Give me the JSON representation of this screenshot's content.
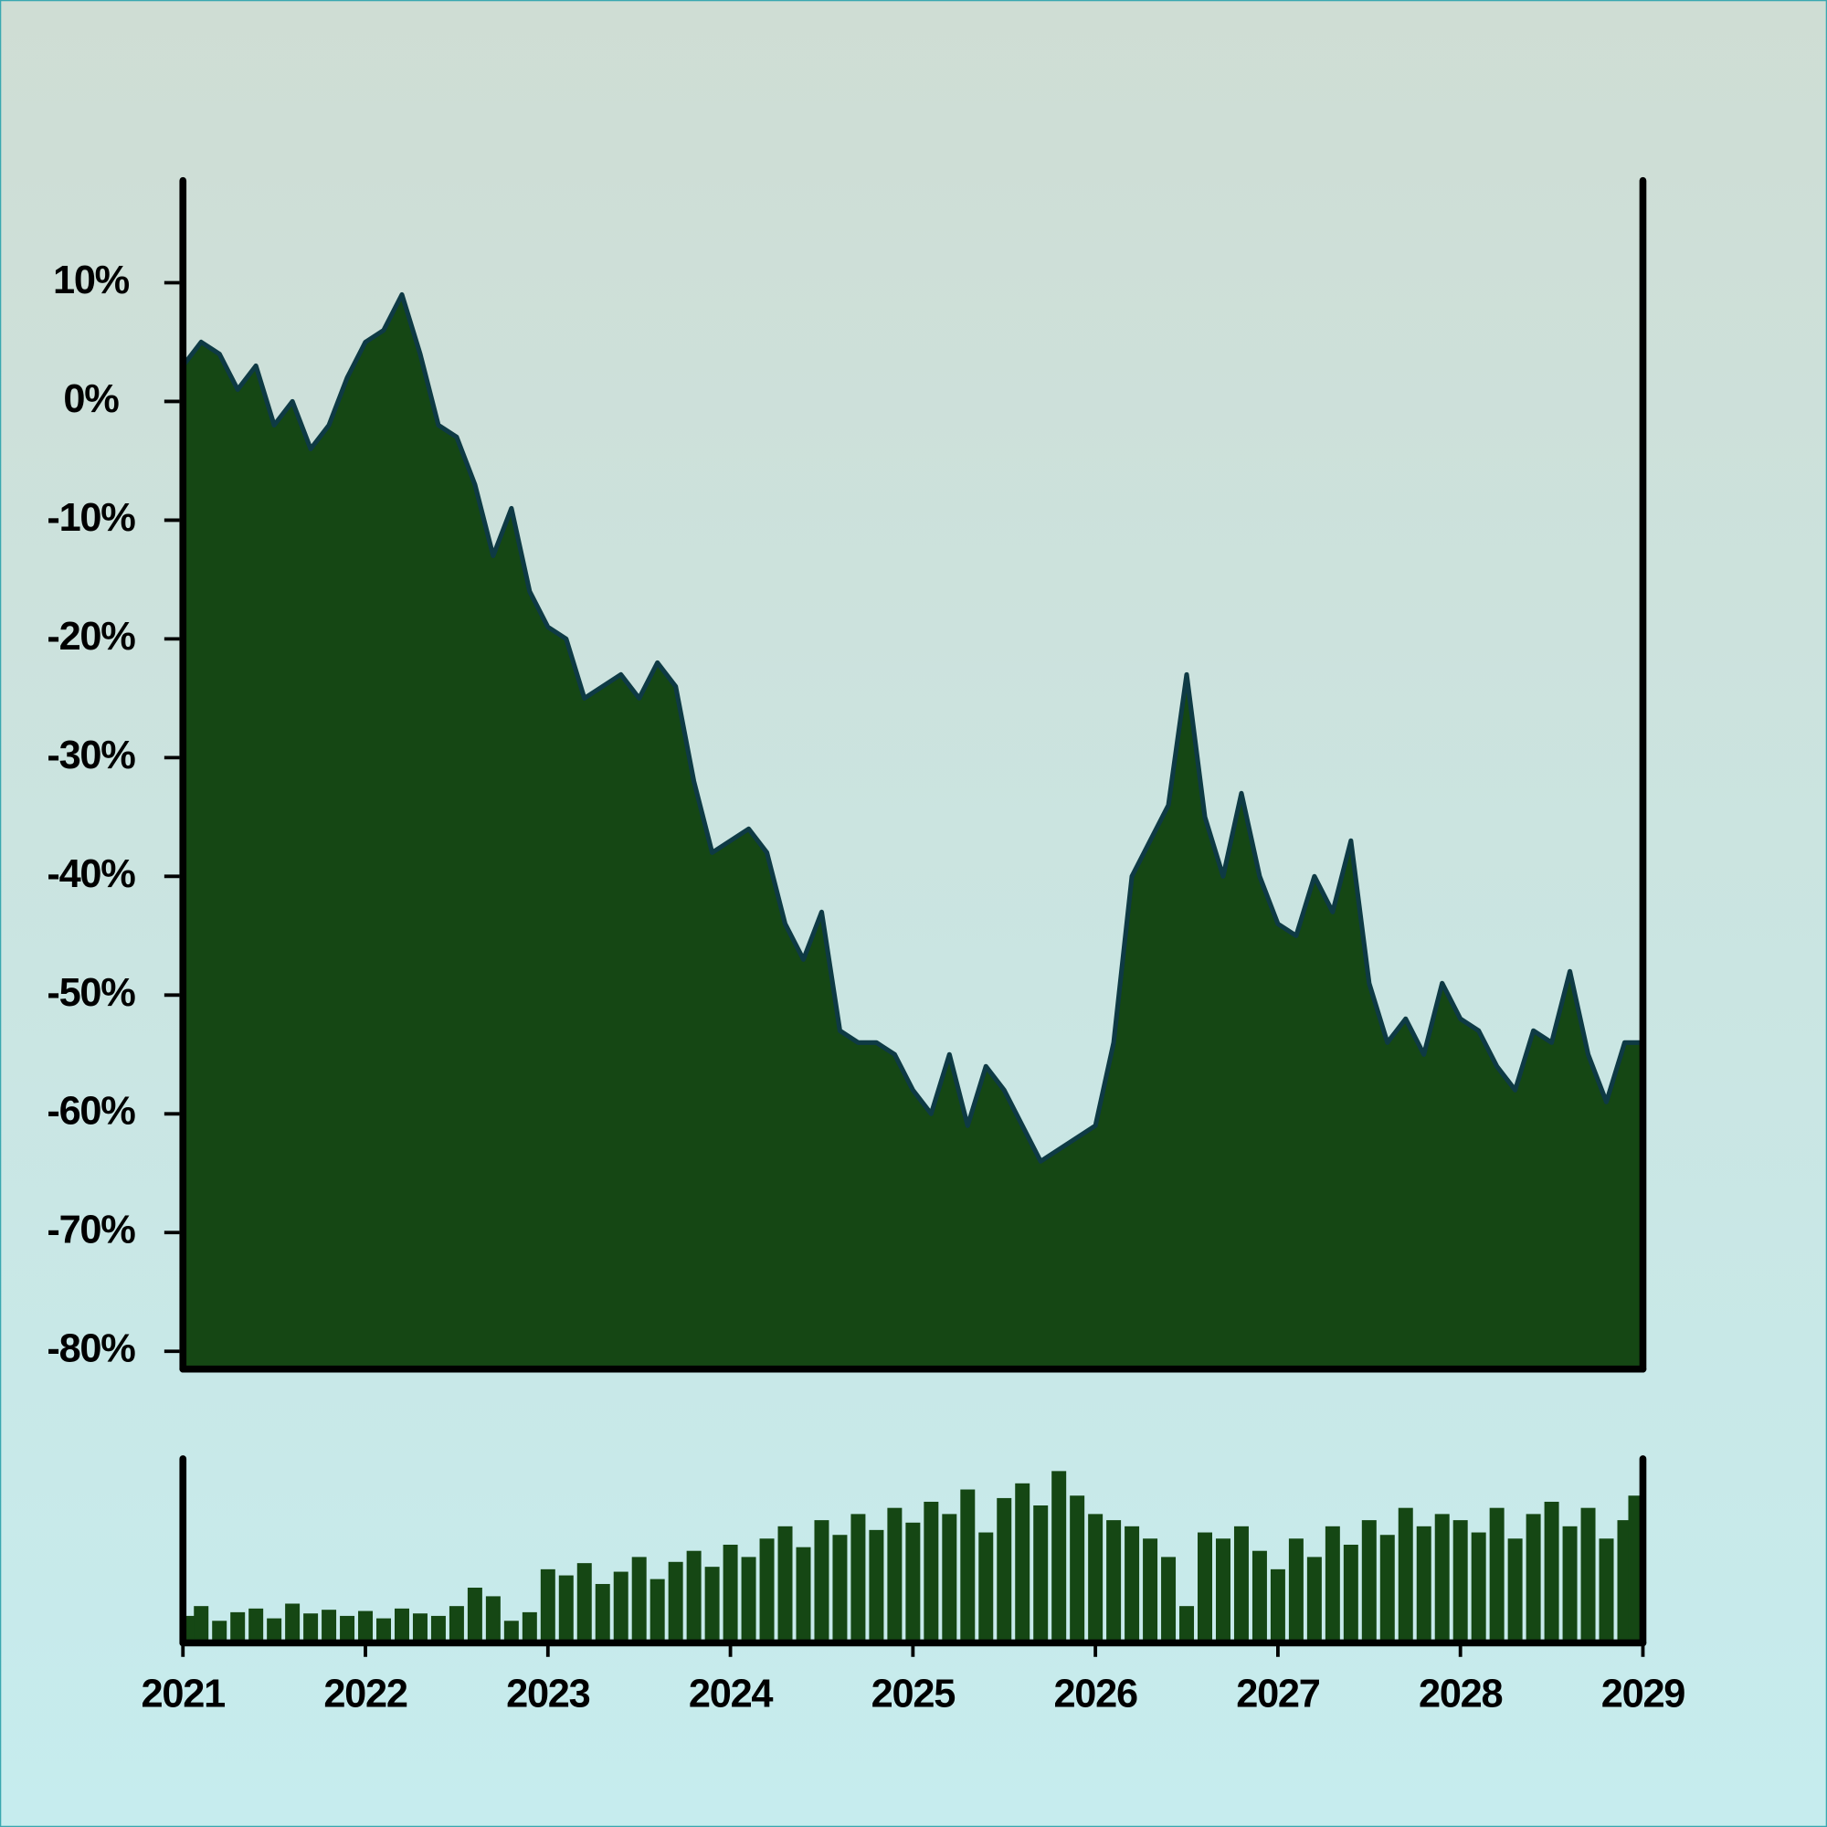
{
  "chart_data": [
    {
      "type": "area",
      "x": [
        2021.0,
        2021.1,
        2021.2,
        2021.3,
        2021.4,
        2021.5,
        2021.6,
        2021.7,
        2021.8,
        2021.9,
        2022.0,
        2022.1,
        2022.2,
        2022.3,
        2022.4,
        2022.5,
        2022.6,
        2022.7,
        2022.8,
        2022.9,
        2023.0,
        2023.1,
        2023.2,
        2023.3,
        2023.4,
        2023.5,
        2023.6,
        2023.7,
        2023.8,
        2023.9,
        2024.0,
        2024.1,
        2024.2,
        2024.3,
        2024.4,
        2024.5,
        2024.6,
        2024.7,
        2024.8,
        2024.9,
        2025.0,
        2025.1,
        2025.2,
        2025.3,
        2025.4,
        2025.5,
        2025.6,
        2025.7,
        2025.8,
        2025.9,
        2026.0,
        2026.1,
        2026.2,
        2026.3,
        2026.4,
        2026.5,
        2026.6,
        2026.7,
        2026.8,
        2026.9,
        2027.0,
        2027.1,
        2027.2,
        2027.3,
        2027.4,
        2027.5,
        2027.6,
        2027.7,
        2027.8,
        2027.9,
        2028.0,
        2028.1,
        2028.2,
        2028.3,
        2028.4,
        2028.5,
        2028.6,
        2028.7,
        2028.8,
        2028.9,
        2029.0
      ],
      "values": [
        3,
        5,
        4,
        1,
        3,
        -2,
        0,
        -4,
        -2,
        2,
        5,
        6,
        9,
        4,
        -2,
        -3,
        -7,
        -13,
        -9,
        -16,
        -19,
        -20,
        -25,
        -24,
        -23,
        -25,
        -22,
        -24,
        -32,
        -38,
        -37,
        -36,
        -38,
        -44,
        -47,
        -43,
        -53,
        -54,
        -54,
        -55,
        -58,
        -60,
        -55,
        -61,
        -56,
        -58,
        -61,
        -64,
        -63,
        -62,
        -61,
        -54,
        -40,
        -37,
        -34,
        -23,
        -35,
        -40,
        -33,
        -40,
        -44,
        -45,
        -40,
        -43,
        -37,
        -49,
        -54,
        -52,
        -55,
        -49,
        -52,
        -53,
        -56,
        -58,
        -53,
        -54,
        -48,
        -55,
        -59,
        -54,
        -54
      ],
      "color": "#154714",
      "line_color": "#0e3a44",
      "xlim": [
        2021,
        2029
      ],
      "ylim": [
        -81.5,
        18.6
      ],
      "yticks": [
        {
          "value": 10,
          "label": "10%"
        },
        {
          "value": 0,
          "label": "0%"
        },
        {
          "value": -10,
          "label": "-10%"
        },
        {
          "value": -20,
          "label": "-20%"
        },
        {
          "value": -30,
          "label": "-30%"
        },
        {
          "value": -40,
          "label": "-40%"
        },
        {
          "value": -50,
          "label": "-50%"
        },
        {
          "value": -60,
          "label": "-60%"
        },
        {
          "value": -70,
          "label": "-70%"
        },
        {
          "value": -80,
          "label": "-80%"
        }
      ]
    },
    {
      "type": "bar",
      "x": [
        2021.0,
        2021.1,
        2021.2,
        2021.3,
        2021.4,
        2021.5,
        2021.6,
        2021.7,
        2021.8,
        2021.9,
        2022.0,
        2022.1,
        2022.2,
        2022.3,
        2022.4,
        2022.5,
        2022.6,
        2022.7,
        2022.8,
        2022.9,
        2023.0,
        2023.1,
        2023.2,
        2023.3,
        2023.4,
        2023.5,
        2023.6,
        2023.7,
        2023.8,
        2023.9,
        2024.0,
        2024.1,
        2024.2,
        2024.3,
        2024.4,
        2024.5,
        2024.6,
        2024.7,
        2024.8,
        2024.9,
        2025.0,
        2025.1,
        2025.2,
        2025.3,
        2025.4,
        2025.5,
        2025.6,
        2025.7,
        2025.8,
        2025.9,
        2026.0,
        2026.1,
        2026.2,
        2026.3,
        2026.4,
        2026.5,
        2026.6,
        2026.7,
        2026.8,
        2026.9,
        2027.0,
        2027.1,
        2027.2,
        2027.3,
        2027.4,
        2027.5,
        2027.6,
        2027.7,
        2027.8,
        2027.9,
        2028.0,
        2028.1,
        2028.2,
        2028.3,
        2028.4,
        2028.5,
        2028.6,
        2028.7,
        2028.8,
        2028.9,
        2029.0
      ],
      "values": [
        22,
        30,
        18,
        25,
        28,
        20,
        32,
        24,
        27,
        22,
        26,
        20,
        28,
        24,
        22,
        30,
        45,
        38,
        18,
        25,
        60,
        55,
        65,
        48,
        58,
        70,
        52,
        66,
        75,
        62,
        80,
        70,
        85,
        95,
        78,
        100,
        88,
        105,
        92,
        110,
        98,
        115,
        105,
        125,
        90,
        118,
        130,
        112,
        140,
        120,
        105,
        100,
        95,
        85,
        70,
        30,
        90,
        85,
        95,
        75,
        60,
        85,
        70,
        95,
        80,
        100,
        88,
        110,
        95,
        105,
        100,
        90,
        110,
        85,
        105,
        115,
        95,
        110,
        85,
        100,
        120
      ],
      "color": "#154714",
      "xlim": [
        2021,
        2029
      ],
      "ylim": [
        0,
        150
      ],
      "xticks": [
        2021,
        2022,
        2023,
        2024,
        2025,
        2026,
        2027,
        2028,
        2029
      ]
    }
  ]
}
